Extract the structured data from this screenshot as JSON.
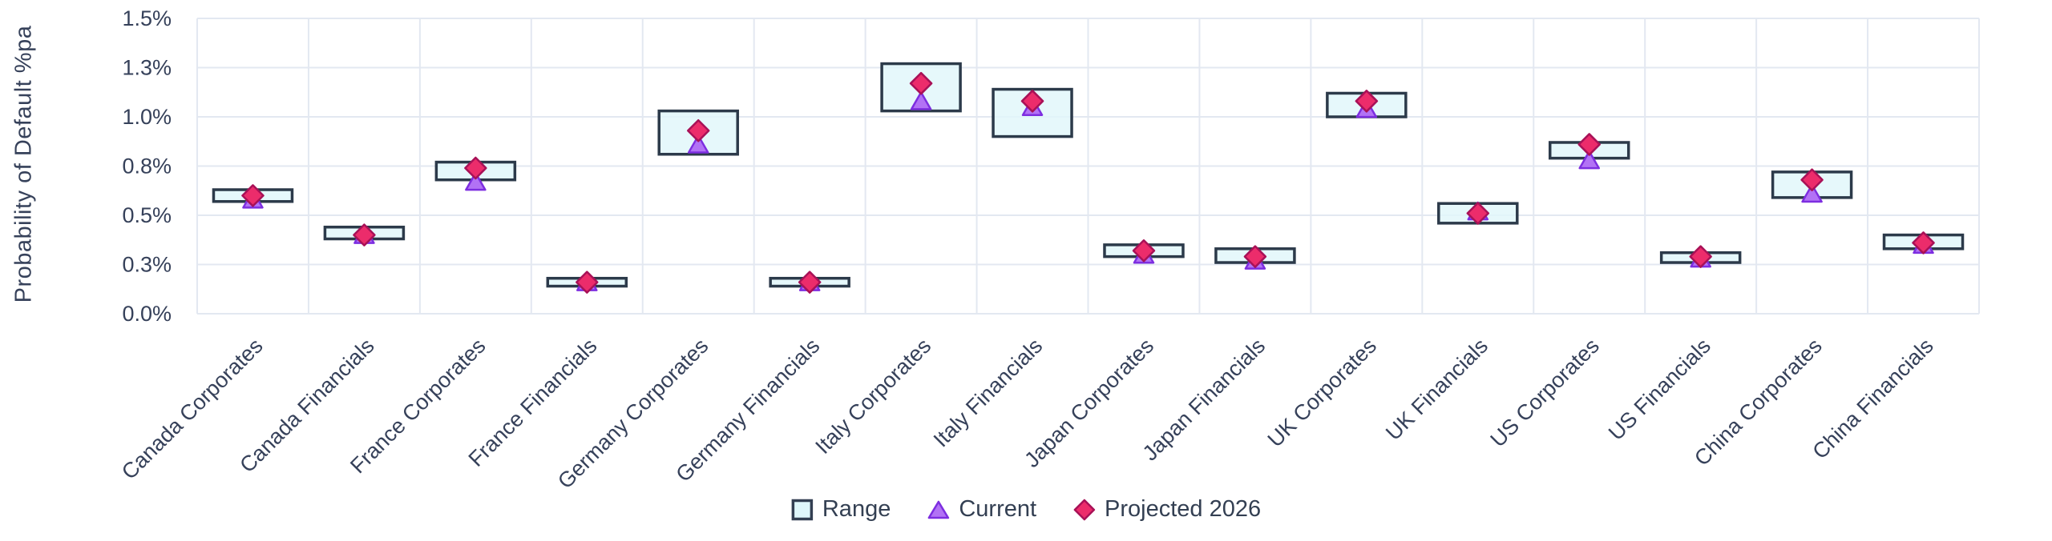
{
  "chart_data": {
    "type": "range_bar_with_markers",
    "title": "",
    "ylabel": "Probability of Default %pa",
    "units": "percent per annum",
    "ylim": [
      0,
      1.5
    ],
    "ytick_step": 0.25,
    "ytick_labels": [
      "0.0%",
      "0.3%",
      "0.5%",
      "0.8%",
      "1.0%",
      "1.3%",
      "1.5%"
    ],
    "grid": "on",
    "legend_position": "bottom-center",
    "categories": [
      "Canada Corporates",
      "Canada Financials",
      "France Corporates",
      "France Financials",
      "Germany Corporates",
      "Germany Financials",
      "Italy Corporates",
      "Italy Financials",
      "Japan Corporates",
      "Japan Financials",
      "UK Corporates",
      "UK Financials",
      "US Corporates",
      "US Financials",
      "China Corporates",
      "China Financials"
    ],
    "series": [
      {
        "name": "Range",
        "type": "range_box",
        "marker": "square",
        "low": [
          0.57,
          0.38,
          0.68,
          0.14,
          0.81,
          0.14,
          1.03,
          0.9,
          0.29,
          0.26,
          1.0,
          0.46,
          0.79,
          0.26,
          0.59,
          0.33
        ],
        "high": [
          0.63,
          0.44,
          0.77,
          0.18,
          1.03,
          0.18,
          1.27,
          1.14,
          0.35,
          0.33,
          1.12,
          0.56,
          0.87,
          0.31,
          0.72,
          0.4
        ]
      },
      {
        "name": "Current",
        "type": "scatter",
        "marker": "triangle",
        "values": [
          0.58,
          0.4,
          0.67,
          0.16,
          0.86,
          0.16,
          1.08,
          1.05,
          0.3,
          0.27,
          1.04,
          0.52,
          0.78,
          0.28,
          0.61,
          0.35
        ]
      },
      {
        "name": "Projected 2026",
        "type": "scatter",
        "marker": "diamond",
        "values": [
          0.6,
          0.4,
          0.74,
          0.16,
          0.93,
          0.16,
          1.17,
          1.08,
          0.32,
          0.29,
          1.08,
          0.51,
          0.86,
          0.29,
          0.68,
          0.36
        ]
      }
    ],
    "colors": {
      "range_fill": "#E0F6FA",
      "range_stroke": "#2C3A4A",
      "current_fill": "#B272F5",
      "current_stroke": "#7D2EE0",
      "projected_fill": "#EC2C6B",
      "projected_stroke": "#A81157",
      "gridline": "#E3E8F1",
      "text": "#36415A"
    }
  }
}
